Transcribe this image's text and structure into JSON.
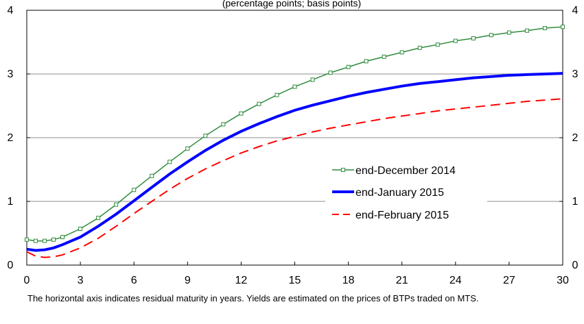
{
  "chart_data": {
    "type": "line",
    "title": "(percentage points; basis points)",
    "xlabel": "",
    "ylabel": "",
    "xlim": [
      0,
      30
    ],
    "ylim": [
      0,
      4
    ],
    "x_ticks": [
      "0",
      "3",
      "6",
      "9",
      "12",
      "15",
      "18",
      "21",
      "24",
      "27",
      "30"
    ],
    "y_ticks_left": [
      "0",
      "1",
      "2",
      "3",
      "4"
    ],
    "y_ticks_right": [
      "0",
      "1",
      "2",
      "3",
      "4"
    ],
    "grid": "horizontal",
    "legend_position": "center-right",
    "x": [
      0,
      0.5,
      1,
      1.5,
      2,
      3,
      4,
      5,
      6,
      7,
      8,
      9,
      10,
      11,
      12,
      13,
      14,
      15,
      16,
      17,
      18,
      19,
      20,
      21,
      22,
      23,
      24,
      25,
      26,
      27,
      28,
      29,
      30
    ],
    "series": [
      {
        "name": "end-December 2014",
        "color": "#2e8b3a",
        "style": "line-with-square-markers",
        "values": [
          0.4,
          0.38,
          0.38,
          0.4,
          0.44,
          0.57,
          0.74,
          0.95,
          1.18,
          1.4,
          1.62,
          1.83,
          2.03,
          2.21,
          2.38,
          2.53,
          2.67,
          2.8,
          2.91,
          3.02,
          3.11,
          3.2,
          3.27,
          3.34,
          3.41,
          3.46,
          3.52,
          3.56,
          3.61,
          3.65,
          3.68,
          3.72,
          3.74
        ]
      },
      {
        "name": "end-January 2015",
        "color": "#0000ff",
        "style": "thick-solid",
        "values": [
          0.25,
          0.23,
          0.24,
          0.27,
          0.32,
          0.44,
          0.61,
          0.8,
          1.01,
          1.22,
          1.43,
          1.62,
          1.8,
          1.96,
          2.1,
          2.22,
          2.33,
          2.43,
          2.51,
          2.58,
          2.65,
          2.71,
          2.76,
          2.81,
          2.85,
          2.88,
          2.91,
          2.94,
          2.96,
          2.98,
          2.99,
          3.0,
          3.01
        ]
      },
      {
        "name": "end-February 2015",
        "color": "#ff0000",
        "style": "dashed",
        "values": [
          0.21,
          0.14,
          0.12,
          0.13,
          0.16,
          0.27,
          0.42,
          0.61,
          0.81,
          1.0,
          1.19,
          1.36,
          1.51,
          1.64,
          1.76,
          1.86,
          1.95,
          2.02,
          2.09,
          2.15,
          2.2,
          2.25,
          2.3,
          2.34,
          2.38,
          2.42,
          2.45,
          2.48,
          2.51,
          2.54,
          2.57,
          2.59,
          2.61
        ]
      }
    ]
  },
  "note": "The horizontal axis indicates residual maturity in years. Yields are estimated on the prices of BTPs traded on MTS."
}
